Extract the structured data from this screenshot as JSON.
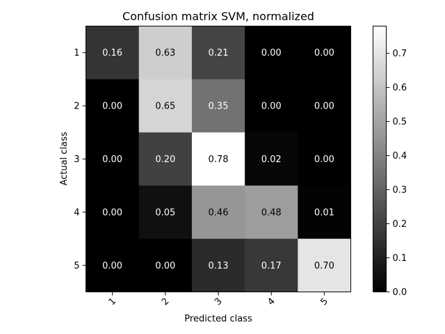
{
  "chart_data": {
    "type": "heatmap",
    "title": "Confusion matrix SVM, normalized",
    "xlabel": "Predicted class",
    "ylabel": "Actual class",
    "x_categories": [
      "1",
      "2",
      "3",
      "4",
      "5"
    ],
    "y_categories": [
      "1",
      "2",
      "3",
      "4",
      "5"
    ],
    "values": [
      [
        0.16,
        0.63,
        0.21,
        0.0,
        0.0
      ],
      [
        0.0,
        0.65,
        0.35,
        0.0,
        0.0
      ],
      [
        0.0,
        0.2,
        0.78,
        0.02,
        0.0
      ],
      [
        0.0,
        0.05,
        0.46,
        0.48,
        0.01
      ],
      [
        0.0,
        0.0,
        0.13,
        0.17,
        0.7
      ]
    ],
    "colormap": "gray",
    "vmin": 0.0,
    "vmax": 0.78,
    "colorbar_ticks": [
      "0.0",
      "0.1",
      "0.2",
      "0.3",
      "0.4",
      "0.5",
      "0.6",
      "0.7"
    ],
    "text_color_light": "#ffffff",
    "text_color_dark": "#000000"
  }
}
